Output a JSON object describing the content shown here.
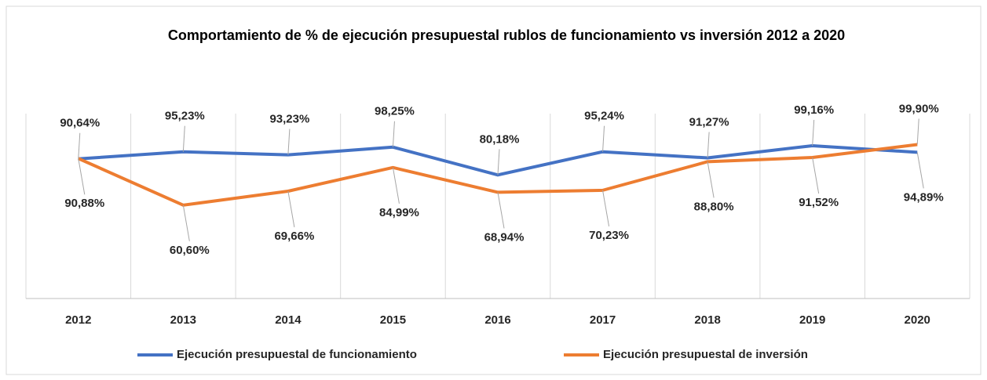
{
  "chart_data": {
    "type": "line",
    "title": "Comportamiento de % de ejecución presupuestal rublos de funcionamiento vs inversión 2012 a 2020",
    "categories": [
      "2012",
      "2013",
      "2014",
      "2015",
      "2016",
      "2017",
      "2018",
      "2019",
      "2020"
    ],
    "series": [
      {
        "name": "Ejecución presupuestal de funcionamiento",
        "color": "#4472c4",
        "values": [
          90.64,
          95.23,
          93.23,
          98.25,
          80.18,
          95.24,
          91.27,
          99.16,
          94.89
        ],
        "value_labels": [
          "90,64%",
          "95,23%",
          "93,23%",
          "98,25%",
          "80,18%",
          "95,24%",
          "91,27%",
          "99,16%",
          "94,89%"
        ]
      },
      {
        "name": "Ejecución presupuestal de inversión",
        "color": "#ed7d31",
        "values": [
          90.88,
          60.6,
          69.66,
          84.99,
          68.94,
          70.23,
          88.8,
          91.52,
          99.9
        ],
        "value_labels": [
          "90,88%",
          "60,60%",
          "69,66%",
          "84,99%",
          "68,94%",
          "70,23%",
          "88,80%",
          "91,52%",
          "99,90%"
        ]
      }
    ],
    "ylim": [
      0,
      120
    ],
    "legend": "bottom"
  }
}
